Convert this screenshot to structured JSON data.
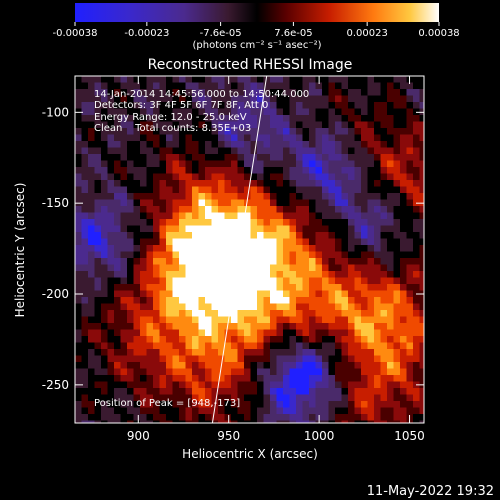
{
  "colorbar": {
    "tick_labels": [
      "-0.00038",
      "-0.00023",
      "-7.6e-05",
      "7.6e-05",
      "0.00023",
      "0.00038"
    ],
    "tick_values": [
      -0.00038,
      -0.00023,
      -7.6e-05,
      7.6e-05,
      0.00023,
      0.00038
    ],
    "range": [
      -0.00038,
      0.00038
    ],
    "units_text": "(photons cm⁻² s⁻¹ asec⁻²)"
  },
  "chart_data": {
    "type": "heatmap",
    "title": "Reconstructed RHESSI Image",
    "xlabel": "Heliocentric X (arcsec)",
    "ylabel": "Heliocentric Y (arcsec)",
    "xlim": [
      865,
      1058
    ],
    "ylim": [
      -271,
      -80
    ],
    "x_ticks": [
      900,
      950,
      1000,
      1050
    ],
    "y_ticks": [
      -100,
      -150,
      -200,
      -250
    ],
    "colormap": [
      "#2020ff",
      "#3a28cc",
      "#4b2a8e",
      "#4a2a6a",
      "#3a1a30",
      "#000000",
      "#4a0000",
      "#8a0a0a",
      "#c81e00",
      "#f04a00",
      "#ff8a10",
      "#ffc840",
      "#ffffff"
    ],
    "hotspots": [
      {
        "x": 948,
        "y": -173,
        "intensity": 1.0,
        "label": "peak"
      },
      {
        "x": 930,
        "y": -190,
        "intensity": 0.7
      },
      {
        "x": 960,
        "y": -205,
        "intensity": 0.6
      },
      {
        "x": 1040,
        "y": -215,
        "intensity": 0.7
      },
      {
        "x": 1005,
        "y": -210,
        "intensity": 0.55
      },
      {
        "x": 1050,
        "y": -140,
        "intensity": 0.55
      },
      {
        "x": 1030,
        "y": -255,
        "intensity": 0.5
      },
      {
        "x": 945,
        "y": -245,
        "intensity": 0.55
      },
      {
        "x": 905,
        "y": -225,
        "intensity": 0.45
      },
      {
        "x": 985,
        "y": -175,
        "intensity": 0.45
      },
      {
        "x": 935,
        "y": -140,
        "intensity": 0.35
      },
      {
        "x": 1015,
        "y": -120,
        "intensity": 0.35
      }
    ],
    "coldspots": [
      {
        "x": 1005,
        "y": -130,
        "intensity": 0.9
      },
      {
        "x": 985,
        "y": -250,
        "intensity": 0.8
      },
      {
        "x": 1030,
        "y": -160,
        "intensity": 0.7
      },
      {
        "x": 880,
        "y": -170,
        "intensity": 0.6
      },
      {
        "x": 1000,
        "y": -235,
        "intensity": 0.6
      },
      {
        "x": 960,
        "y": -110,
        "intensity": 0.5
      }
    ],
    "limb_line": [
      [
        941,
        -271
      ],
      [
        971,
        -80
      ]
    ]
  },
  "annotations": {
    "line1": "14-Jan-2014 14:45:56.000 to 14:50:44.000",
    "line2": "Detectors: 3F 4F 5F 6F 7F 8F, Att 0",
    "line3": "Energy Range: 12.0 - 25.0 keV",
    "line4": "Clean    Total counts: 8.35E+03",
    "peak": "Position of Peak = [948,-173]"
  },
  "timestamp": "11-May-2022 19:32"
}
